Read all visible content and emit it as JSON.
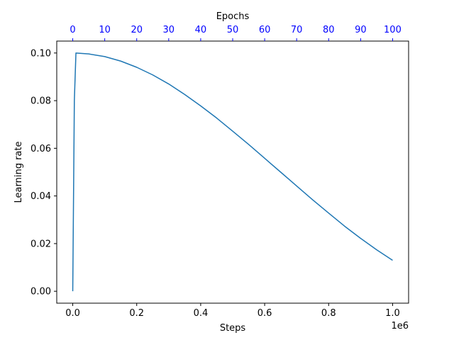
{
  "chart_data": {
    "type": "line",
    "xlabel": "Steps",
    "ylabel": "Learning rate",
    "top_xlabel": "Epochs",
    "x_offset_label": "1e6",
    "xlim": [
      -50000,
      1050000
    ],
    "ylim": [
      -0.005,
      0.105
    ],
    "top_xlim": [
      -5,
      105
    ],
    "x_ticks": [
      0,
      200000,
      400000,
      600000,
      800000,
      1000000
    ],
    "x_tick_labels": [
      "0.0",
      "0.2",
      "0.4",
      "0.6",
      "0.8",
      "1.0"
    ],
    "y_ticks": [
      0.0,
      0.02,
      0.04,
      0.06,
      0.08,
      0.1
    ],
    "y_tick_labels": [
      "0.00",
      "0.02",
      "0.04",
      "0.06",
      "0.08",
      "0.10"
    ],
    "top_ticks": [
      0,
      10,
      20,
      30,
      40,
      50,
      60,
      70,
      80,
      90,
      100
    ],
    "top_tick_labels": [
      "0",
      "10",
      "20",
      "30",
      "40",
      "50",
      "60",
      "70",
      "80",
      "90",
      "100"
    ],
    "grid": false,
    "line_color": "#1f77b4",
    "top_axis_color": "#0000ff",
    "series": [
      {
        "x": [
          0,
          5000,
          10000,
          50000,
          100000,
          150000,
          200000,
          250000,
          300000,
          350000,
          400000,
          450000,
          500000,
          550000,
          600000,
          650000,
          700000,
          750000,
          800000,
          850000,
          900000,
          950000,
          1000000
        ],
        "y": [
          0.0,
          0.08,
          0.1,
          0.0996,
          0.0985,
          0.0966,
          0.094,
          0.0908,
          0.087,
          0.0826,
          0.0778,
          0.0727,
          0.0672,
          0.0616,
          0.0558,
          0.05,
          0.0442,
          0.0384,
          0.0328,
          0.0273,
          0.0222,
          0.0174,
          0.013
        ]
      }
    ]
  }
}
